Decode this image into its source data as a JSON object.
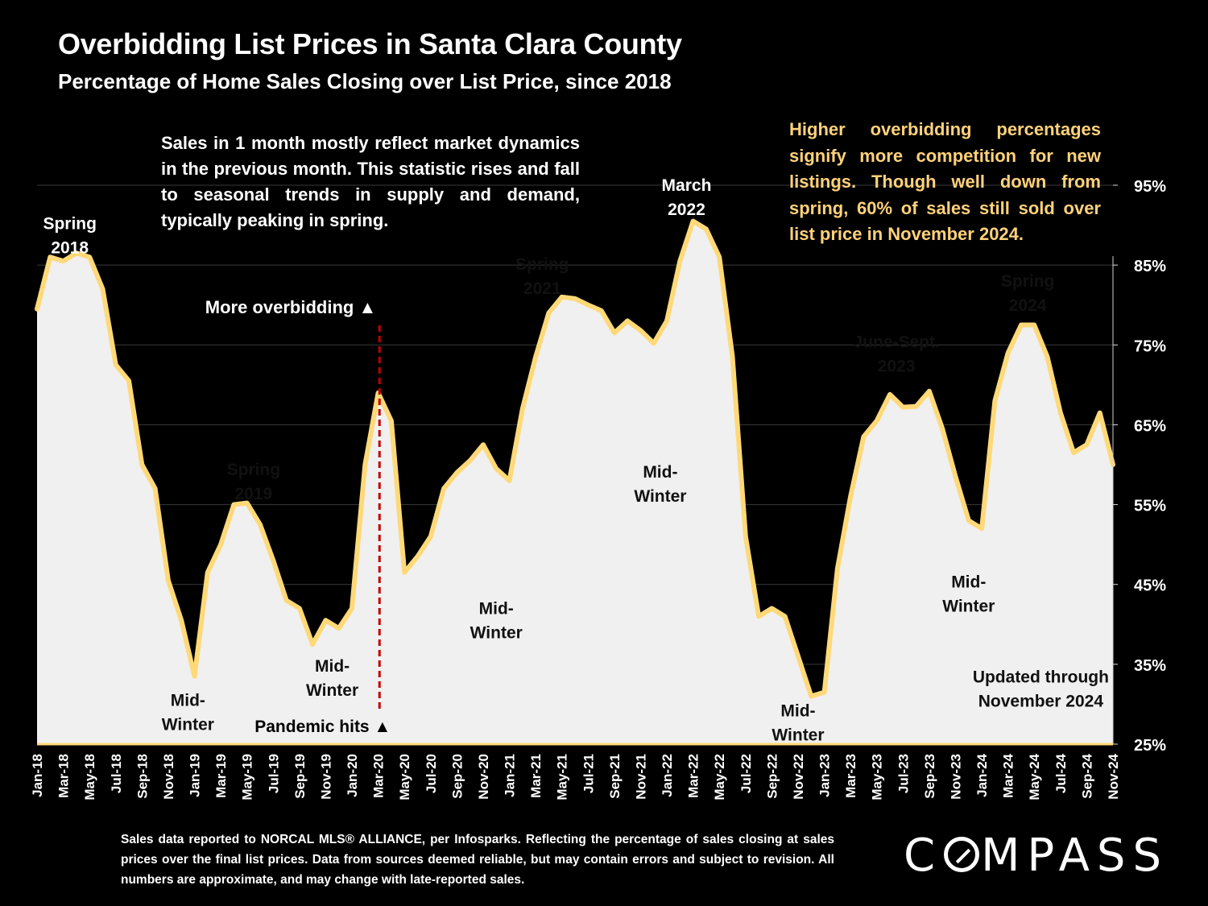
{
  "title": "Overbidding List Prices in Santa Clara County",
  "subtitle": "Percentage of Home Sales Closing over List Price, since 2018",
  "note_left": "Sales in 1 month mostly reflect market dynamics in the previous month. This statistic rises and fall to seasonal trends in supply and demand, typically peaking in spring.",
  "note_right": "Higher overbidding percentages signify more competition for new listings. Though well down from spring, 60% of sales still sold over list price in November 2024.",
  "footnote": "Sales data reported to NORCAL MLS® ALLIANCE, per Infosparks. Reflecting the percentage of sales closing at sales prices over the final list prices. Data from sources deemed reliable, but may contain errors and subject to revision. All numbers are approximate, and may change with late-reported sales.",
  "brand": {
    "before": "C",
    "after": "MPASS"
  },
  "colors": {
    "background": "#000000",
    "area_fill": "#F0F0F0",
    "line": "#FFD978",
    "marker_line": "#C00000",
    "note_right_text": "#FFD27A"
  },
  "chart_data": {
    "type": "area",
    "title": "Overbidding List Prices in Santa Clara County",
    "ylabel": "",
    "ylim": [
      25,
      95
    ],
    "yticks": [
      "25%",
      "35%",
      "45%",
      "55%",
      "65%",
      "75%",
      "85%",
      "95%"
    ],
    "y_axis_position": "right",
    "grid": true,
    "x_tick_labels": [
      "Jan-18",
      "Mar-18",
      "May-18",
      "Jul-18",
      "Sep-18",
      "Nov-18",
      "Jan-19",
      "Mar-19",
      "May-19",
      "Jul-19",
      "Sep-19",
      "Nov-19",
      "Jan-20",
      "Mar-20",
      "May-20",
      "Jul-20",
      "Sep-20",
      "Nov-20",
      "Jan-21",
      "Mar-21",
      "May-21",
      "Jul-21",
      "Sep-21",
      "Nov-21",
      "Jan-22",
      "Mar-22",
      "May-22",
      "Jul-22",
      "Sep-22",
      "Nov-22",
      "Jan-23",
      "Mar-23",
      "May-23",
      "Jul-23",
      "Sep-23",
      "Nov-23",
      "Jan-24",
      "Mar-24",
      "May-24",
      "Jul-24",
      "Sep-24",
      "Nov-24"
    ],
    "x_start": "2018-01",
    "x_end": "2024-11",
    "values": [
      79.5,
      86,
      85.5,
      86.5,
      86,
      82,
      72.5,
      70.5,
      60,
      57,
      45.5,
      40.5,
      33.5,
      46.5,
      50,
      55,
      55.2,
      52.5,
      48,
      43,
      42,
      37.5,
      40.5,
      39.5,
      42,
      60,
      69,
      65.5,
      46.5,
      48.5,
      51,
      57,
      59,
      60.5,
      62.5,
      59.5,
      58,
      67,
      73.5,
      79,
      81,
      80.8,
      80,
      79.3,
      76.5,
      78,
      76.8,
      75.2,
      78,
      85.5,
      90.5,
      89.5,
      86,
      73.5,
      51,
      41,
      42,
      41,
      36,
      31,
      31.5,
      47,
      56,
      63.5,
      65.5,
      68.8,
      67.2,
      67.3,
      69.2,
      64.5,
      58.5,
      53,
      52,
      68,
      74,
      77.5,
      77.5,
      73.5,
      66.5,
      61.5,
      62.5,
      66.5,
      60
    ],
    "annotations": [
      {
        "lines": [
          "Spring",
          "2018"
        ],
        "month": 2.5,
        "y": 89.5
      },
      {
        "lines": [
          "Mid-",
          "Winter"
        ],
        "month": 11.5,
        "y": 29.8
      },
      {
        "lines": [
          "Spring",
          "2019"
        ],
        "month": 16.5,
        "y": 58.7
      },
      {
        "lines": [
          "Mid-",
          "Winter"
        ],
        "month": 22.5,
        "y": 34.1
      },
      {
        "lines": [
          "Spring",
          "2021"
        ],
        "month": 38.5,
        "y": 84.4
      },
      {
        "lines": [
          "Mid-",
          "Winter"
        ],
        "month": 35,
        "y": 41.3
      },
      {
        "lines": [
          "March",
          "2022"
        ],
        "month": 49.5,
        "y": 94.3
      },
      {
        "lines": [
          "Mid-",
          "Winter"
        ],
        "month": 47.5,
        "y": 58.4
      },
      {
        "lines": [
          "Mid-",
          "Winter"
        ],
        "month": 58,
        "y": 28.5
      },
      {
        "lines": [
          "June-Sept.",
          "2023"
        ],
        "month": 65.5,
        "y": 74.7
      },
      {
        "lines": [
          "Mid-",
          "Winter"
        ],
        "month": 71,
        "y": 44.6
      },
      {
        "lines": [
          "Spring",
          "2024"
        ],
        "month": 75.5,
        "y": 82.3
      },
      {
        "lines": [
          "Updated through",
          "November 2024"
        ],
        "month": 76.5,
        "y": 32.7
      }
    ],
    "event_marker": {
      "month": 26.1,
      "top_label": "More overbidding ▲",
      "bottom_label": "Pandemic hits ▲"
    }
  }
}
